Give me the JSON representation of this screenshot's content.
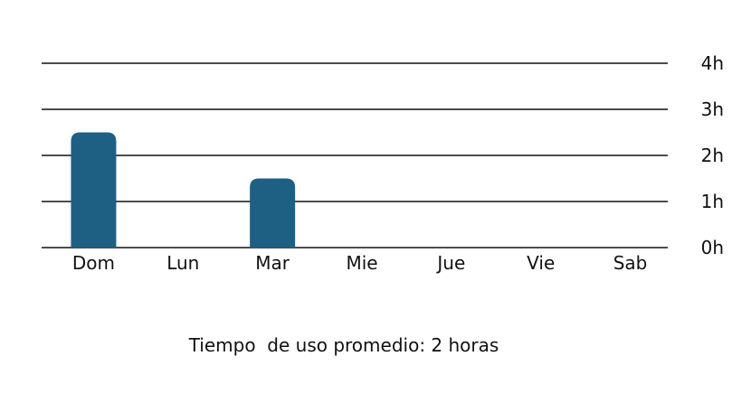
{
  "chart_data": {
    "type": "bar",
    "categories": [
      "Dom",
      "Lun",
      "Mar",
      "Mie",
      "Jue",
      "Vie",
      "Sab"
    ],
    "values": [
      2.5,
      0,
      1.5,
      0,
      0,
      0,
      0
    ],
    "y_ticks": [
      "0h",
      "1h",
      "2h",
      "3h",
      "4h"
    ],
    "ylim": [
      0,
      4
    ],
    "grid": true,
    "y_axis_position": "right",
    "bar_color": "#1d6084"
  },
  "footer": {
    "summary": "Tiempo  de uso promedio: 2 horas"
  }
}
